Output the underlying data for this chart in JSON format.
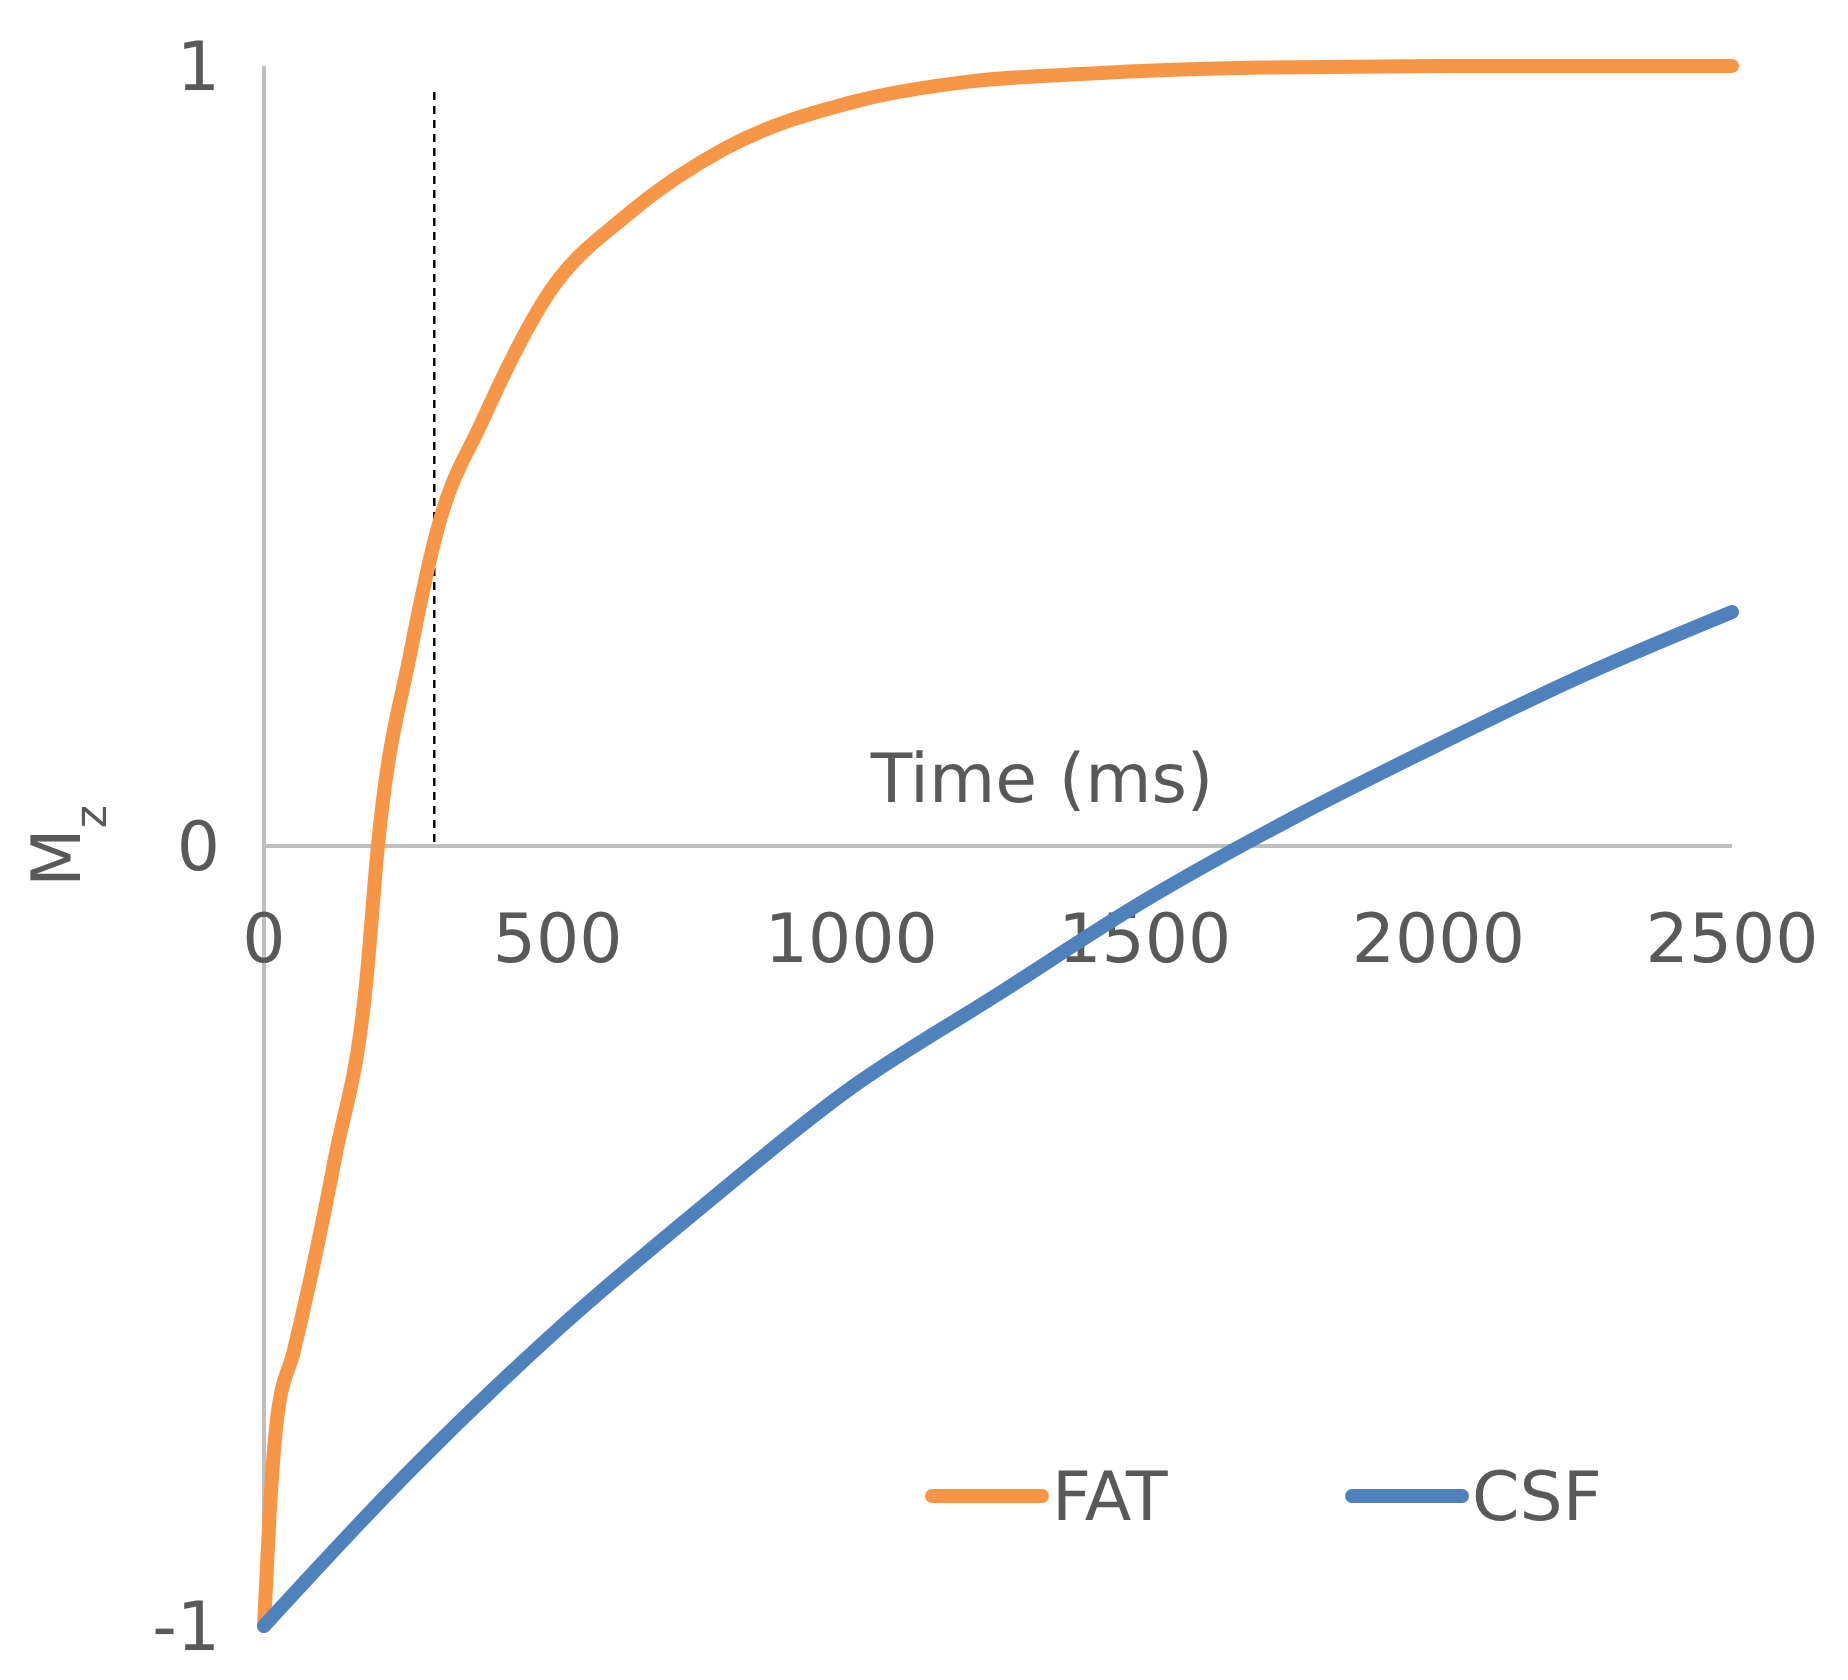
{
  "chart_data": {
    "type": "line",
    "xlabel": "Time (ms)",
    "ylabel": "M$_{z}$",
    "xlim": [
      0,
      2500
    ],
    "ylim": [
      -1,
      1
    ],
    "xticks": [
      0,
      500,
      1000,
      1500,
      2000,
      2500
    ],
    "yticks": [
      -1,
      0,
      1
    ],
    "legend": "bottom right",
    "grid": false,
    "line_style": "solid",
    "marker": "none",
    "ref_lines": [
      {
        "axis": "x",
        "value": 290,
        "color": "#000000",
        "line_style": "dashed"
      }
    ],
    "series": [
      {
        "name": "FAT",
        "color": "#f79646",
        "x": [
          0,
          10,
          23,
          50,
          121,
          174,
          194,
          250,
          295,
          372,
          486,
          620,
          787,
          1009,
          1200,
          1400,
          1700,
          2000,
          2500
        ],
        "values": [
          -1,
          -0.85,
          -0.73,
          -0.65,
          -0.4,
          -0.175,
          0,
          0.25,
          0.405,
          0.545,
          0.71,
          0.81,
          0.895,
          0.955,
          0.98,
          0.99,
          0.998,
          1,
          1
        ]
      },
      {
        "name": "CSF",
        "color": "#4f81bd",
        "x": [
          0,
          250,
          500,
          750,
          1000,
          1250,
          1500,
          1750,
          2000,
          2250,
          2500
        ],
        "values": [
          -1,
          -0.8,
          -0.62,
          -0.46,
          -0.31,
          -0.19,
          -0.07,
          0.035,
          0.13,
          0.22,
          0.3
        ]
      }
    ]
  }
}
